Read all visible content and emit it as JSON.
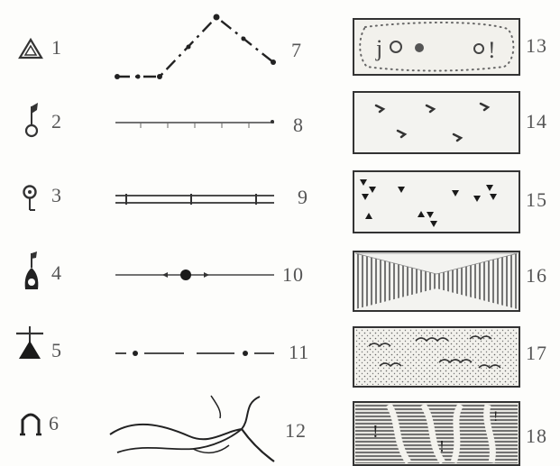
{
  "legend": {
    "col1": [
      {
        "num": "1",
        "icon": "triangle-point-icon"
      },
      {
        "num": "2",
        "icon": "flag-ring-icon"
      },
      {
        "num": "3",
        "icon": "ring-stem-icon"
      },
      {
        "num": "4",
        "icon": "tall-ring-flag-icon"
      },
      {
        "num": "5",
        "icon": "filled-triangle-tower-icon"
      },
      {
        "num": "6",
        "icon": "arch-icon"
      }
    ],
    "col2": [
      {
        "num": "7",
        "icon": "dash-dot-boundary-line"
      },
      {
        "num": "8",
        "icon": "ticked-line"
      },
      {
        "num": "9",
        "icon": "double-line-with-ticks"
      },
      {
        "num": "10",
        "icon": "line-with-center-dot"
      },
      {
        "num": "11",
        "icon": "dash-dot-broken-line"
      },
      {
        "num": "12",
        "icon": "branching-river-lines"
      }
    ],
    "col3": [
      {
        "num": "13",
        "icon": "dotted-area-pattern"
      },
      {
        "num": "14",
        "icon": "scattered-marks-pattern"
      },
      {
        "num": "15",
        "icon": "triangle-marks-pattern"
      },
      {
        "num": "16",
        "icon": "hatched-band-pattern"
      },
      {
        "num": "17",
        "icon": "stipple-wave-pattern"
      },
      {
        "num": "18",
        "icon": "dense-striped-pattern"
      }
    ]
  }
}
